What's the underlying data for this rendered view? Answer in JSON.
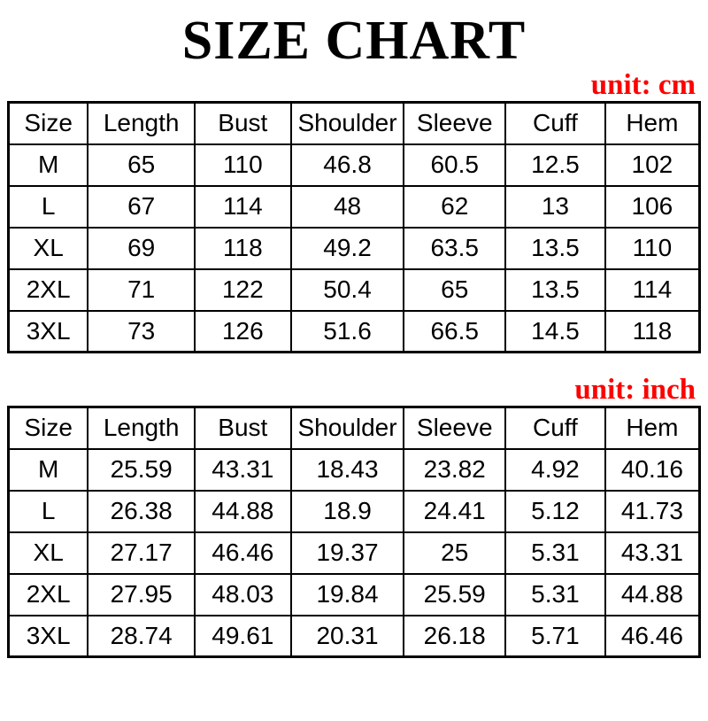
{
  "page": {
    "title": "SIZE CHART",
    "background_color": "#ffffff",
    "text_color": "#000000",
    "accent_color": "#fe0000",
    "border_color": "#000000"
  },
  "chart_data": [
    {
      "type": "table",
      "title": "SIZE CHART",
      "unit_label": "unit:  cm",
      "unit": "cm",
      "columns": [
        "Size",
        "Length",
        "Bust",
        "Shoulder",
        "Sleeve",
        "Cuff",
        "Hem"
      ],
      "rows": [
        [
          "M",
          65,
          110,
          46.8,
          60.5,
          12.5,
          102
        ],
        [
          "L",
          67,
          114,
          48,
          62,
          13,
          106
        ],
        [
          "XL",
          69,
          118,
          49.2,
          63.5,
          13.5,
          110
        ],
        [
          "2XL",
          71,
          122,
          50.4,
          65,
          13.5,
          114
        ],
        [
          "3XL",
          73,
          126,
          51.6,
          66.5,
          14.5,
          118
        ]
      ]
    },
    {
      "type": "table",
      "title": "SIZE CHART",
      "unit_label": "unit:  inch",
      "unit": "inch",
      "columns": [
        "Size",
        "Length",
        "Bust",
        "Shoulder",
        "Sleeve",
        "Cuff",
        "Hem"
      ],
      "rows": [
        [
          "M",
          25.59,
          43.31,
          18.43,
          23.82,
          4.92,
          40.16
        ],
        [
          "L",
          26.38,
          44.88,
          18.9,
          24.41,
          5.12,
          41.73
        ],
        [
          "XL",
          27.17,
          46.46,
          19.37,
          25,
          5.31,
          43.31
        ],
        [
          "2XL",
          27.95,
          48.03,
          19.84,
          25.59,
          5.31,
          44.88
        ],
        [
          "3XL",
          28.74,
          49.61,
          20.31,
          26.18,
          5.71,
          46.46
        ]
      ]
    }
  ]
}
